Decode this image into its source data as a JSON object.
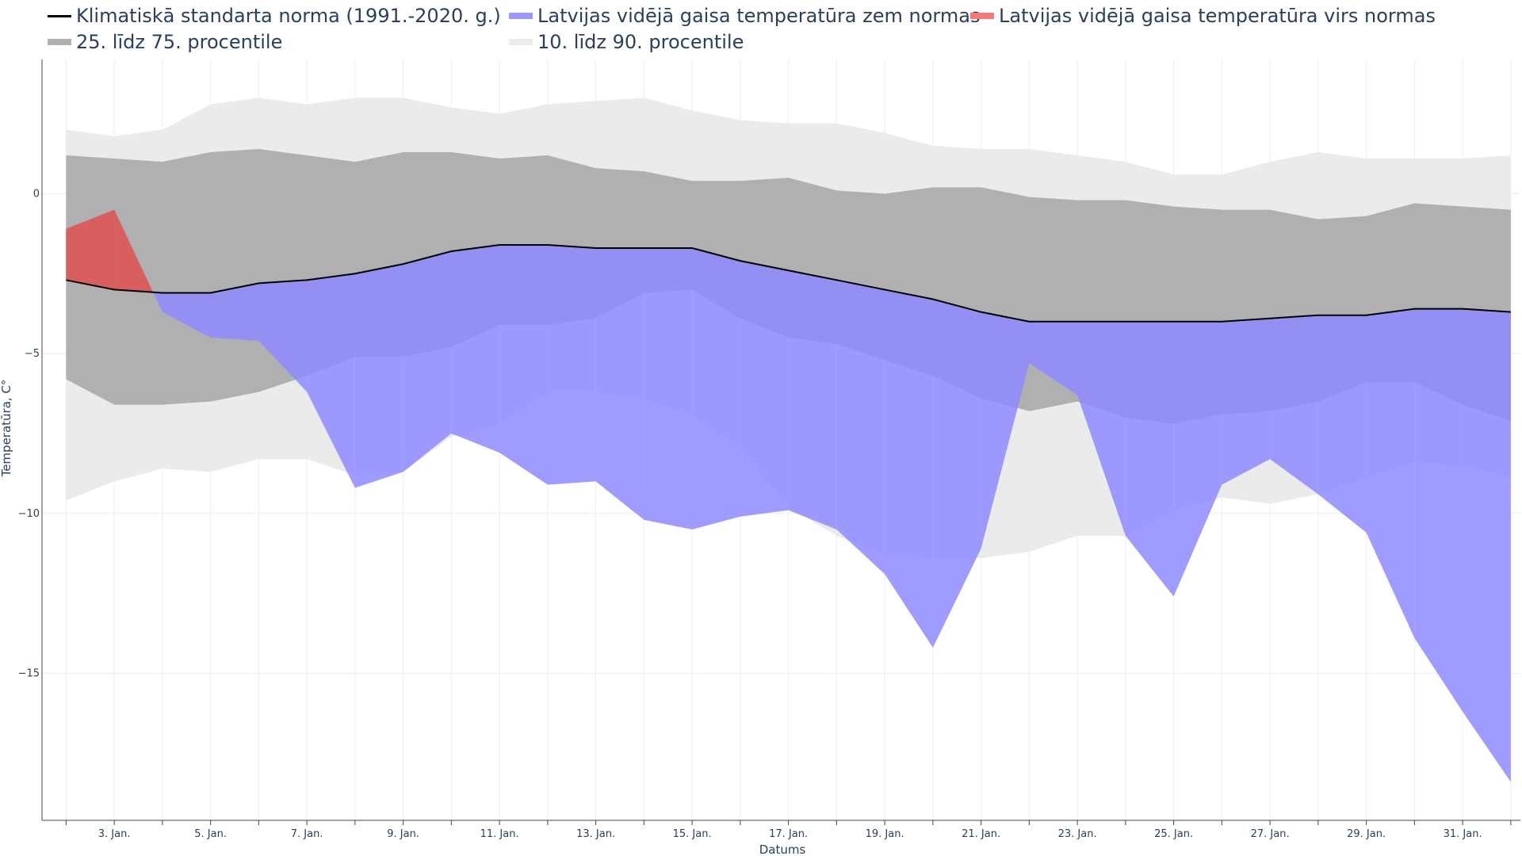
{
  "chart_data": {
    "type": "area",
    "title": "",
    "xlabel": "Datums",
    "ylabel": "Temperatūra, C°",
    "ylim": [
      -19.6,
      4.2
    ],
    "yticks": [
      0,
      -5,
      -10,
      -15
    ],
    "ytick_labels": [
      "0",
      "−5",
      "−10",
      "−15"
    ],
    "days": [
      2,
      3,
      4,
      5,
      6,
      7,
      8,
      9,
      10,
      11,
      12,
      13,
      14,
      15,
      16,
      17,
      18,
      19,
      20,
      21,
      22,
      23,
      24,
      25,
      26,
      27,
      28,
      29,
      30,
      31,
      32
    ],
    "xtick_days": [
      3,
      5,
      7,
      9,
      11,
      13,
      15,
      17,
      19,
      21,
      23,
      25,
      27,
      29,
      31
    ],
    "xtick_labels": [
      "3. Jan.",
      "5. Jan.",
      "7. Jan.",
      "9. Jan.",
      "11. Jan.",
      "13. Jan.",
      "15. Jan.",
      "17. Jan.",
      "19. Jan.",
      "21. Jan.",
      "23. Jan.",
      "25. Jan.",
      "27. Jan.",
      "29. Jan.",
      "31. Jan."
    ],
    "legend": [
      {
        "key": "norm",
        "label": "Klimatiskā standarta norma (1991.-2020. g.)",
        "color": "#000000",
        "kind": "line"
      },
      {
        "key": "below",
        "label": "Latvijas vidējā gaisa temperatūra zem normas",
        "color": "#9a98ff",
        "kind": "line"
      },
      {
        "key": "above",
        "label": "Latvijas vidējā gaisa temperatūra virs normas",
        "color": "#f47a7a",
        "kind": "line"
      },
      {
        "key": "p25_75",
        "label": "25. līdz 75. procentile",
        "color": "#b0b0b0",
        "kind": "band"
      },
      {
        "key": "p10_90",
        "label": "10. līdz 90. procentile",
        "color": "#ebebeb",
        "kind": "band"
      }
    ],
    "series": [
      {
        "name": "norm",
        "values": [
          -2.7,
          -3.0,
          -3.1,
          -3.1,
          -2.8,
          -2.7,
          -2.5,
          -2.2,
          -1.8,
          -1.6,
          -1.6,
          -1.7,
          -1.7,
          -1.7,
          -2.1,
          -2.4,
          -2.7,
          -3.0,
          -3.3,
          -3.7,
          -4.0,
          -4.0,
          -4.0,
          -4.0,
          -4.0,
          -3.9,
          -3.8,
          -3.8,
          -3.6,
          -3.6,
          -3.7
        ]
      },
      {
        "name": "actual",
        "values": [
          -1.1,
          -0.5,
          -3.7,
          -4.5,
          -4.6,
          -6.2,
          -9.2,
          -8.7,
          -7.5,
          -8.1,
          -9.1,
          -9.0,
          -10.2,
          -10.5,
          -10.1,
          -9.9,
          -10.5,
          -11.9,
          -14.2,
          -11.1,
          -5.3,
          -6.3,
          -10.7,
          -12.6,
          -9.1,
          -8.3,
          -9.4,
          -10.6,
          -13.9,
          -16.2,
          -18.4
        ]
      },
      {
        "name": "p25",
        "values": [
          -5.8,
          -6.6,
          -6.6,
          -6.5,
          -6.2,
          -5.7,
          -5.1,
          -5.1,
          -4.8,
          -4.1,
          -4.1,
          -3.9,
          -3.1,
          -3.0,
          -3.9,
          -4.5,
          -4.7,
          -5.2,
          -5.7,
          -6.4,
          -6.8,
          -6.5,
          -7.0,
          -7.2,
          -6.9,
          -6.8,
          -6.5,
          -5.9,
          -5.9,
          -6.6,
          -7.1
        ]
      },
      {
        "name": "p75",
        "values": [
          1.2,
          1.1,
          1.0,
          1.3,
          1.4,
          1.2,
          1.0,
          1.3,
          1.3,
          1.1,
          1.2,
          0.8,
          0.7,
          0.4,
          0.4,
          0.5,
          0.1,
          0.0,
          0.2,
          0.2,
          -0.1,
          -0.2,
          -0.2,
          -0.4,
          -0.5,
          -0.5,
          -0.8,
          -0.7,
          -0.3,
          -0.4,
          -0.5
        ]
      },
      {
        "name": "p10",
        "values": [
          -9.6,
          -9.0,
          -8.6,
          -8.7,
          -8.3,
          -8.3,
          -8.8,
          -8.7,
          -7.6,
          -7.2,
          -6.2,
          -6.2,
          -6.4,
          -6.9,
          -7.9,
          -9.8,
          -10.7,
          -11.3,
          -11.4,
          -11.4,
          -11.2,
          -10.7,
          -10.7,
          -9.9,
          -9.5,
          -9.7,
          -9.4,
          -8.9,
          -8.4,
          -8.5,
          -8.9
        ]
      },
      {
        "name": "p90",
        "values": [
          2.0,
          1.8,
          2.0,
          2.8,
          3.0,
          2.8,
          3.0,
          3.0,
          2.7,
          2.5,
          2.8,
          2.9,
          3.0,
          2.6,
          2.3,
          2.2,
          2.2,
          1.9,
          1.5,
          1.4,
          1.4,
          1.2,
          1.0,
          0.6,
          0.6,
          1.0,
          1.3,
          1.1,
          1.1,
          1.1,
          1.2
        ]
      }
    ],
    "colors": {
      "norm": "#000000",
      "below": "#8e8aff",
      "above": "#e05050",
      "p25_75": "#b0b0b0",
      "p10_90": "#ebebeb",
      "grid": "#eeeeee",
      "axis": "#444444"
    }
  }
}
